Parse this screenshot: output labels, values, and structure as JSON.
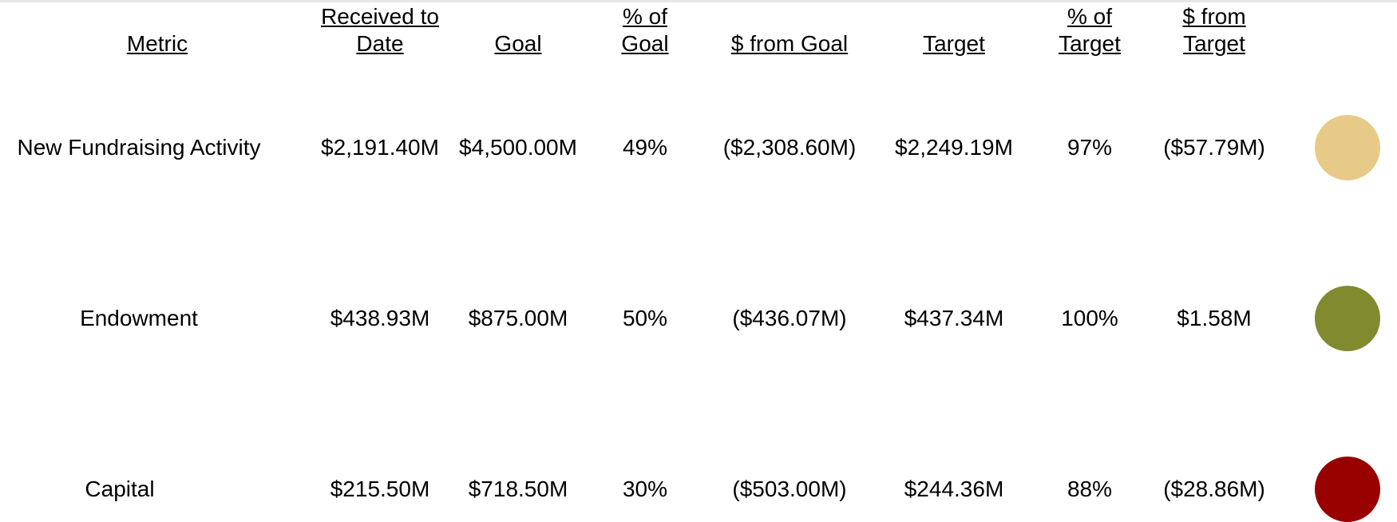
{
  "table": {
    "headers": [
      "Metric",
      "Received to Date",
      "Goal",
      "% of Goal",
      "$ from Goal",
      "Target",
      "% of Target",
      "$ from Target"
    ],
    "rows": [
      {
        "cells": [
          "New Fundraising Activity",
          "$2,191.40M",
          "$4,500.00M",
          "49%",
          "($2,308.60M)",
          "$2,249.19M",
          "97%",
          "($57.79M)"
        ],
        "status_color": "#e8ca88"
      },
      {
        "cells": [
          "Endowment",
          "$438.93M",
          "$875.00M",
          "50%",
          "($436.07M)",
          "$437.34M",
          "100%",
          "$1.58M"
        ],
        "status_color": "#818a2f"
      },
      {
        "cells": [
          "Capital",
          "$215.50M",
          "$718.50M",
          "30%",
          "($503.00M)",
          "$244.36M",
          "88%",
          "($28.86M)"
        ],
        "status_color": "#990000"
      }
    ]
  }
}
